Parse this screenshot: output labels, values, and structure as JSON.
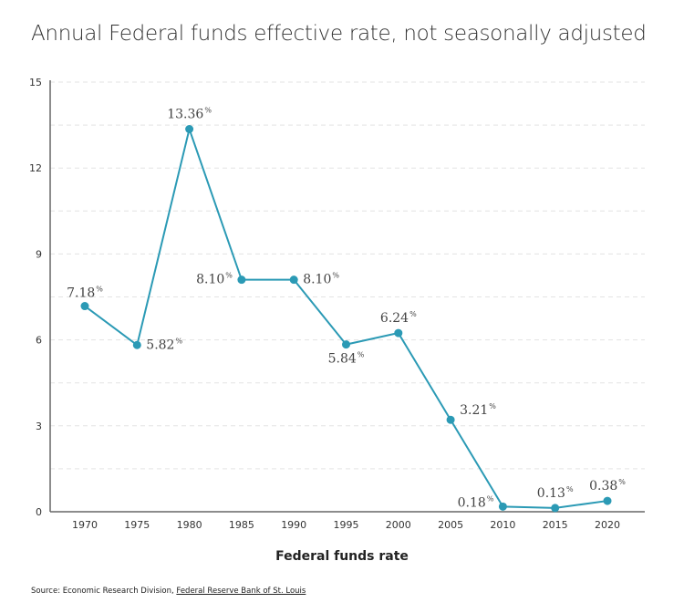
{
  "chart_data": {
    "type": "line",
    "title": "Annual Federal funds effective rate, not seasonally adjusted",
    "xlabel": "Federal funds rate",
    "ylabel": "",
    "x": [
      1970,
      1975,
      1980,
      1985,
      1990,
      1995,
      2000,
      2005,
      2010,
      2015,
      2020
    ],
    "values": [
      7.18,
      5.82,
      13.36,
      8.1,
      8.1,
      5.84,
      6.24,
      3.21,
      0.18,
      0.13,
      0.38
    ],
    "data_labels": [
      "7.18",
      "5.82",
      "13.36",
      "8.10",
      "8.10",
      "5.84",
      "6.24",
      "3.21",
      "0.18",
      "0.13",
      "0.38"
    ],
    "label_suffix": "%",
    "ylim": [
      0,
      15
    ],
    "yticks": [
      0,
      3,
      6,
      9,
      12,
      15
    ],
    "grid": "horizontal dashed every 1.5",
    "color": "#2b9ab5"
  },
  "source": {
    "prefix": "Source: Economic Research Division, ",
    "link": "Federal Reserve Bank of St. Louis"
  }
}
